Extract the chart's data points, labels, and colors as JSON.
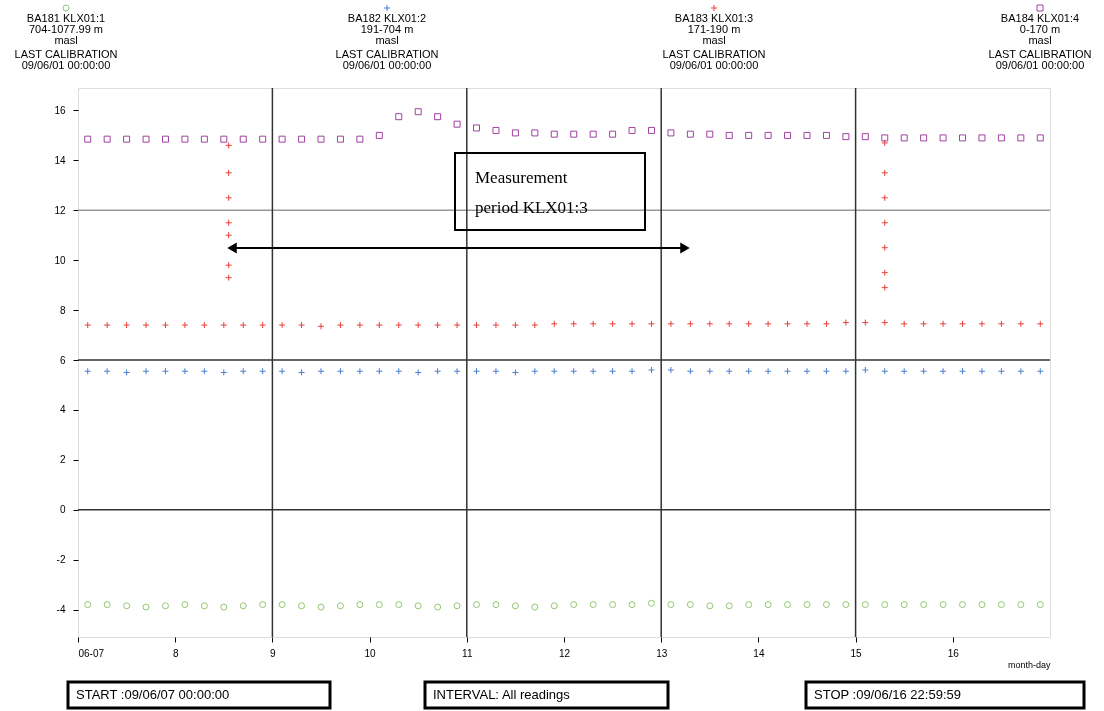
{
  "chart_data": {
    "type": "scatter",
    "xlabel": "month-day",
    "legend": "top",
    "x": [
      7.1,
      7.3,
      7.5,
      7.7,
      7.9,
      8.1,
      8.3,
      8.5,
      8.7,
      8.9,
      9.1,
      9.3,
      9.5,
      9.7,
      9.9,
      10.1,
      10.3,
      10.5,
      10.7,
      10.9,
      11.1,
      11.3,
      11.5,
      11.7,
      11.9,
      12.1,
      12.3,
      12.5,
      12.7,
      12.9,
      13.1,
      13.3,
      13.5,
      13.7,
      13.9,
      14.1,
      14.3,
      14.5,
      14.7,
      14.9,
      15.1,
      15.3,
      15.5,
      15.7,
      15.9,
      16.1,
      16.3,
      16.5,
      16.7,
      16.9
    ],
    "series": [
      {
        "name": "BA181 KLX01:1",
        "color": "#90c870",
        "marker": "circle",
        "values": [
          -3.8,
          -3.8,
          -3.85,
          -3.9,
          -3.85,
          -3.8,
          -3.85,
          -3.9,
          -3.85,
          -3.8,
          -3.8,
          -3.85,
          -3.9,
          -3.85,
          -3.8,
          -3.8,
          -3.8,
          -3.85,
          -3.9,
          -3.85,
          -3.8,
          -3.8,
          -3.85,
          -3.9,
          -3.85,
          -3.8,
          -3.8,
          -3.8,
          -3.8,
          -3.75,
          -3.8,
          -3.8,
          -3.85,
          -3.85,
          -3.8,
          -3.8,
          -3.8,
          -3.8,
          -3.8,
          -3.8,
          -3.8,
          -3.8,
          -3.8,
          -3.8,
          -3.8,
          -3.8,
          -3.8,
          -3.8,
          -3.8,
          -3.8
        ]
      },
      {
        "name": "BA182 KLX01:2",
        "color": "#4a7fd0",
        "marker": "cross",
        "values": [
          5.55,
          5.55,
          5.5,
          5.55,
          5.55,
          5.55,
          5.55,
          5.5,
          5.55,
          5.55,
          5.55,
          5.5,
          5.55,
          5.55,
          5.55,
          5.55,
          5.55,
          5.5,
          5.55,
          5.55,
          5.55,
          5.55,
          5.5,
          5.55,
          5.55,
          5.55,
          5.55,
          5.55,
          5.55,
          5.6,
          5.6,
          5.55,
          5.55,
          5.55,
          5.55,
          5.55,
          5.55,
          5.55,
          5.55,
          5.55,
          5.6,
          5.55,
          5.55,
          5.55,
          5.55,
          5.55,
          5.55,
          5.55,
          5.55,
          5.55
        ]
      },
      {
        "name": "BA183 KLX01:3",
        "color": "#e8403a",
        "marker": "cross",
        "x": [
          7.1,
          7.3,
          7.5,
          7.7,
          7.9,
          8.1,
          8.3,
          8.5,
          8.7,
          8.9,
          9.1,
          9.3,
          9.5,
          9.7,
          9.9,
          10.1,
          10.3,
          10.5,
          10.7,
          10.9,
          11.1,
          11.3,
          11.5,
          11.7,
          11.9,
          12.1,
          12.3,
          12.5,
          12.7,
          12.9,
          13.1,
          13.3,
          13.5,
          13.7,
          13.9,
          14.1,
          14.3,
          14.5,
          14.7,
          14.9,
          15.1,
          15.3,
          15.5,
          15.7,
          15.9,
          16.1,
          16.3,
          16.5,
          16.7,
          16.9,
          8.55,
          8.55,
          8.55,
          8.55,
          8.55,
          8.55,
          8.55,
          15.3,
          15.3,
          15.3,
          15.3,
          15.3,
          15.3,
          15.3
        ],
        "values": [
          7.4,
          7.4,
          7.4,
          7.4,
          7.4,
          7.4,
          7.4,
          7.4,
          7.4,
          7.4,
          7.4,
          7.4,
          7.35,
          7.4,
          7.4,
          7.4,
          7.4,
          7.4,
          7.4,
          7.4,
          7.4,
          7.4,
          7.4,
          7.4,
          7.45,
          7.45,
          7.45,
          7.45,
          7.45,
          7.45,
          7.45,
          7.45,
          7.45,
          7.45,
          7.45,
          7.45,
          7.45,
          7.45,
          7.45,
          7.5,
          7.5,
          7.5,
          7.45,
          7.45,
          7.45,
          7.45,
          7.45,
          7.45,
          7.45,
          7.45,
          14.6,
          13.5,
          12.5,
          11.5,
          11.0,
          9.8,
          9.3,
          14.7,
          13.5,
          12.5,
          11.5,
          10.5,
          9.5,
          8.9
        ]
      },
      {
        "name": "BA184 KLX01:4",
        "color": "#a040a0",
        "marker": "square",
        "values": [
          14.85,
          14.85,
          14.85,
          14.85,
          14.85,
          14.85,
          14.85,
          14.85,
          14.85,
          14.85,
          14.85,
          14.85,
          14.85,
          14.85,
          14.85,
          15.0,
          15.75,
          15.95,
          15.75,
          15.45,
          15.3,
          15.2,
          15.1,
          15.1,
          15.05,
          15.05,
          15.05,
          15.05,
          15.2,
          15.2,
          15.1,
          15.05,
          15.05,
          15.0,
          15.0,
          15.0,
          15.0,
          15.0,
          15.0,
          14.95,
          14.95,
          14.9,
          14.9,
          14.9,
          14.9,
          14.9,
          14.9,
          14.9,
          14.9,
          14.9
        ]
      }
    ],
    "xlim": [
      7,
      17
    ],
    "ylim": [
      -5.1,
      16.9
    ],
    "xticks": [
      {
        "value": 7,
        "label": "06-07"
      },
      8,
      9,
      10,
      11,
      12,
      13,
      14,
      15,
      16
    ],
    "yticks": [
      -4,
      -2,
      0,
      2,
      4,
      6,
      8,
      10,
      12,
      14,
      16
    ],
    "ref_lines": [
      {
        "axis": "y",
        "value": 0,
        "color": "#333333"
      },
      {
        "axis": "y",
        "value": 6,
        "color": "#333333"
      },
      {
        "axis": "y",
        "value": 12,
        "color": "#999999"
      },
      {
        "axis": "x",
        "value": 9,
        "color": "#333333"
      },
      {
        "axis": "x",
        "value": 11,
        "color": "#333333"
      },
      {
        "axis": "x",
        "value": 13,
        "color": "#333333"
      },
      {
        "axis": "x",
        "value": 15,
        "color": "#333333"
      }
    ],
    "annotations": [
      "704-1077.99 m",
      "masl",
      "LAST CALIBRATION",
      "09/06/01 00:00:00",
      "191-704 m",
      "masl",
      "LAST CALIBRATION",
      "09/06/01 00:00:00",
      "171-190 m",
      "masl",
      "LAST CALIBRATION",
      "09/06/01 00:00:00",
      "0-170 m",
      "masl",
      "LAST CALIBRATION",
      "09/06/01 00:00:00",
      "START :09/06/07 00:00:00",
      "INTERVAL: All readings",
      "STOP :09/06/16 22:59:59",
      "Measurement period KLX01:3"
    ]
  }
}
